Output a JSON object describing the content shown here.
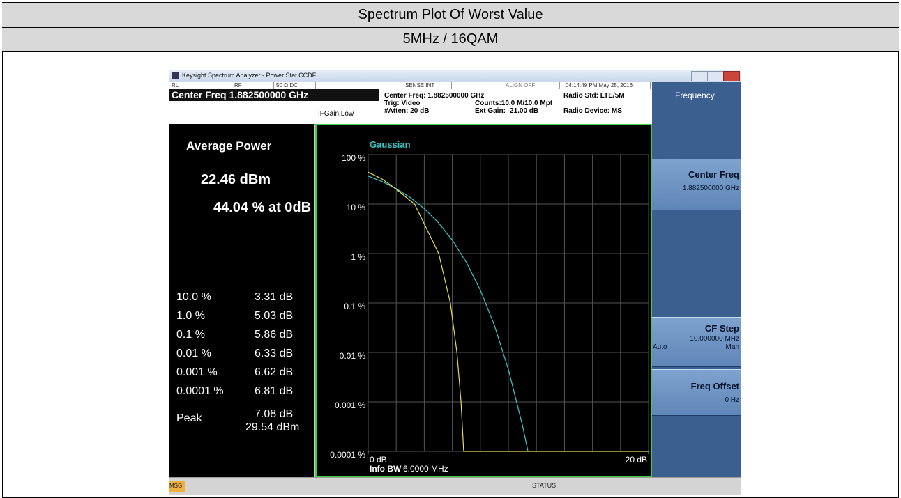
{
  "header": {
    "title": "Spectrum Plot Of Worst Value",
    "subtitle": "5MHz / 16QAM"
  },
  "window": {
    "title": "Keysight Spectrum Analyzer - Power Stat CCDF",
    "status": [
      "RL",
      "RF",
      "50 Ω  DC",
      "SENSE:INT",
      "ALIGN OFF",
      "04:14:49 PM May 25, 2016"
    ],
    "center_freq": "Center Freq 1.882500000 GHz",
    "if_gain": "IFGain:Low",
    "settings": [
      "Center Freq: 1.882500000 GHz",
      "Trig: Video",
      "#Atten: 20 dB",
      "Counts:10.0 M/10.0 Mpt",
      "Ext Gain: -21.00 dB",
      "Radio Std: LTE/5M",
      "Radio Device: MS"
    ],
    "msg": "MSG",
    "status_label": "STATUS"
  },
  "results": {
    "title": "Average Power",
    "average": "22.46 dBm",
    "at_0db": "44.04 % at 0dB",
    "rows": [
      [
        "10.0 %",
        "3.31 dB"
      ],
      [
        "1.0 %",
        "5.03 dB"
      ],
      [
        "0.1 %",
        "5.86 dB"
      ],
      [
        "0.01 %",
        "6.33 dB"
      ],
      [
        "0.001 %",
        "6.62 dB"
      ],
      [
        "0.0001 %",
        "6.81 dB"
      ]
    ],
    "peak_label": "Peak",
    "peak_db": "7.08 dB",
    "peak_dbm": "29.54 dBm"
  },
  "softkeys": {
    "menu": "Frequency",
    "keys": [
      {
        "label": "Center Freq",
        "value": "1.882500000 GHz"
      },
      {
        "label": "CF Step",
        "value": "10.000000 MHz",
        "options": [
          "Auto",
          "Man"
        ]
      },
      {
        "label": "Freq Offset",
        "value": "0 Hz"
      }
    ]
  },
  "chart_data": {
    "type": "line",
    "log_y": true,
    "grid": true,
    "info_bw_label": "Info BW",
    "info_bw": "6.0000 MHz",
    "xlim": [
      0,
      20
    ],
    "xticks": [
      {
        "value": 0,
        "label": "0 dB"
      },
      {
        "value": 20,
        "label": "20 dB"
      }
    ],
    "ylim": [
      0.0001,
      100
    ],
    "yticks": [
      {
        "value": 100,
        "label": "100 %"
      },
      {
        "value": 10,
        "label": "10 %"
      },
      {
        "value": 1,
        "label": "1 %"
      },
      {
        "value": 0.1,
        "label": "0.1 %"
      },
      {
        "value": 0.01,
        "label": "0.01 %"
      },
      {
        "value": 0.001,
        "label": "0.001 %"
      },
      {
        "value": 0.0001,
        "label": "0.0001 %"
      }
    ],
    "series": [
      {
        "name": "Gaussian",
        "color": "#3cc8c8",
        "x": [
          0,
          1,
          2,
          3,
          4,
          5,
          6,
          7,
          8,
          9,
          10,
          11,
          11.4
        ],
        "values": [
          36.8,
          28.4,
          20.5,
          13.6,
          8.1,
          4.23,
          1.87,
          0.666,
          0.182,
          0.0355,
          0.00454,
          0.00034,
          0.0001
        ]
      },
      {
        "color": "#e6dc5a",
        "x": [
          0,
          1,
          2,
          3.31,
          5.03,
          5.86,
          6.33,
          6.62,
          6.81,
          7.08,
          20
        ],
        "values": [
          44.04,
          32,
          20,
          10,
          1,
          0.1,
          0.01,
          0.001,
          0.0001,
          0.0001,
          0.0001
        ]
      }
    ]
  }
}
